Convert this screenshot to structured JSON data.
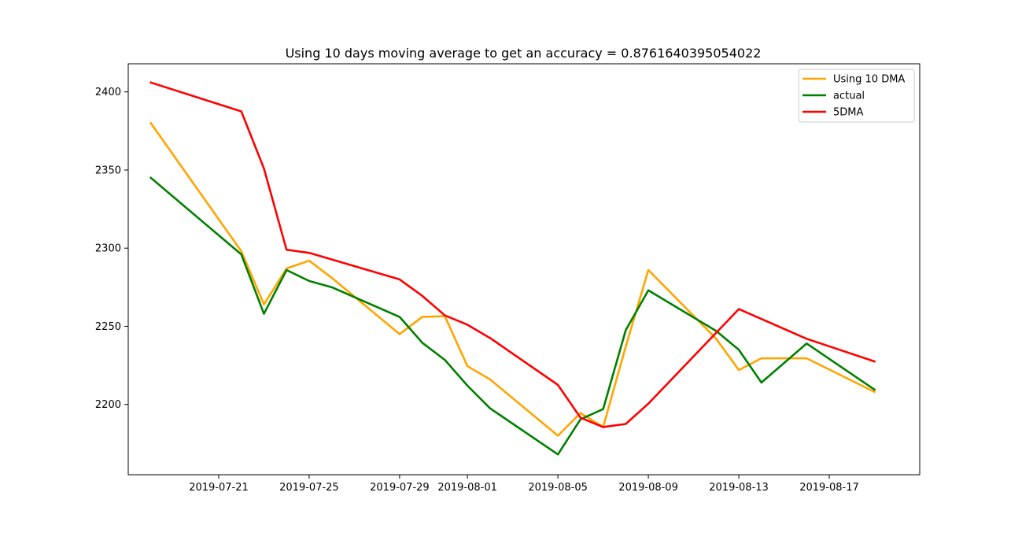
{
  "chart_data": {
    "type": "line",
    "title": "Using 10 days moving average to get an accuracy = 0.8761640395054022",
    "xlabel": "",
    "ylabel": "",
    "x_ticks": [
      "2019-07-21",
      "2019-07-25",
      "2019-07-29",
      "2019-08-01",
      "2019-08-05",
      "2019-08-09",
      "2019-08-13",
      "2019-08-17"
    ],
    "y_ticks": [
      2200,
      2250,
      2300,
      2350,
      2400
    ],
    "xlim": [
      "2019-07-17",
      "2019-08-21"
    ],
    "ylim": [
      2155,
      2418
    ],
    "legend_position": "top-right",
    "grid": false,
    "series": [
      {
        "name": "Using 10 DMA",
        "color": "#ffa500",
        "points": [
          [
            "2019-07-18",
            2380
          ],
          [
            "2019-07-22",
            2298
          ],
          [
            "2019-07-23",
            2264
          ],
          [
            "2019-07-24",
            2287
          ],
          [
            "2019-07-25",
            2292
          ],
          [
            "2019-07-26",
            2281
          ],
          [
            "2019-07-29",
            2245
          ],
          [
            "2019-07-30",
            2256
          ],
          [
            "2019-07-31",
            2256.5
          ],
          [
            "2019-08-01",
            2224.5
          ],
          [
            "2019-08-02",
            2216
          ],
          [
            "2019-08-05",
            2180
          ],
          [
            "2019-08-06",
            2194.5
          ],
          [
            "2019-08-07",
            2185.5
          ],
          [
            "2019-08-08",
            2237
          ],
          [
            "2019-08-09",
            2286
          ],
          [
            "2019-08-12",
            2242
          ],
          [
            "2019-08-13",
            2222
          ],
          [
            "2019-08-14",
            2229.5
          ],
          [
            "2019-08-15",
            2229.5
          ],
          [
            "2019-08-16",
            2229.5
          ],
          [
            "2019-08-19",
            2208
          ]
        ]
      },
      {
        "name": "actual",
        "color": "#008000",
        "points": [
          [
            "2019-07-18",
            2345
          ],
          [
            "2019-07-22",
            2296
          ],
          [
            "2019-07-23",
            2258
          ],
          [
            "2019-07-24",
            2286
          ],
          [
            "2019-07-25",
            2279
          ],
          [
            "2019-07-26",
            2275
          ],
          [
            "2019-07-29",
            2256
          ],
          [
            "2019-07-30",
            2239.5
          ],
          [
            "2019-07-31",
            2228.5
          ],
          [
            "2019-08-01",
            2212
          ],
          [
            "2019-08-02",
            2197.5
          ],
          [
            "2019-08-05",
            2168
          ],
          [
            "2019-08-06",
            2190.5
          ],
          [
            "2019-08-07",
            2197
          ],
          [
            "2019-08-08",
            2247.5
          ],
          [
            "2019-08-09",
            2273
          ],
          [
            "2019-08-12",
            2247
          ],
          [
            "2019-08-13",
            2235
          ],
          [
            "2019-08-14",
            2214
          ],
          [
            "2019-08-15",
            2226.5
          ],
          [
            "2019-08-16",
            2239
          ],
          [
            "2019-08-19",
            2209.5
          ]
        ]
      },
      {
        "name": "5DMA",
        "color": "#ff0000",
        "points": [
          [
            "2019-07-18",
            2406
          ],
          [
            "2019-07-22",
            2387.5
          ],
          [
            "2019-07-23",
            2351
          ],
          [
            "2019-07-24",
            2299
          ],
          [
            "2019-07-25",
            2297
          ],
          [
            "2019-07-29",
            2280
          ],
          [
            "2019-07-30",
            2269.5
          ],
          [
            "2019-07-31",
            2257
          ],
          [
            "2019-08-01",
            2251
          ],
          [
            "2019-08-02",
            2242.5
          ],
          [
            "2019-08-05",
            2212.5
          ],
          [
            "2019-08-06",
            2191.5
          ],
          [
            "2019-08-07",
            2185.5
          ],
          [
            "2019-08-08",
            2187.5
          ],
          [
            "2019-08-09",
            2200.5
          ],
          [
            "2019-08-13",
            2261
          ],
          [
            "2019-08-16",
            2242
          ],
          [
            "2019-08-19",
            2227.5
          ]
        ]
      }
    ]
  }
}
